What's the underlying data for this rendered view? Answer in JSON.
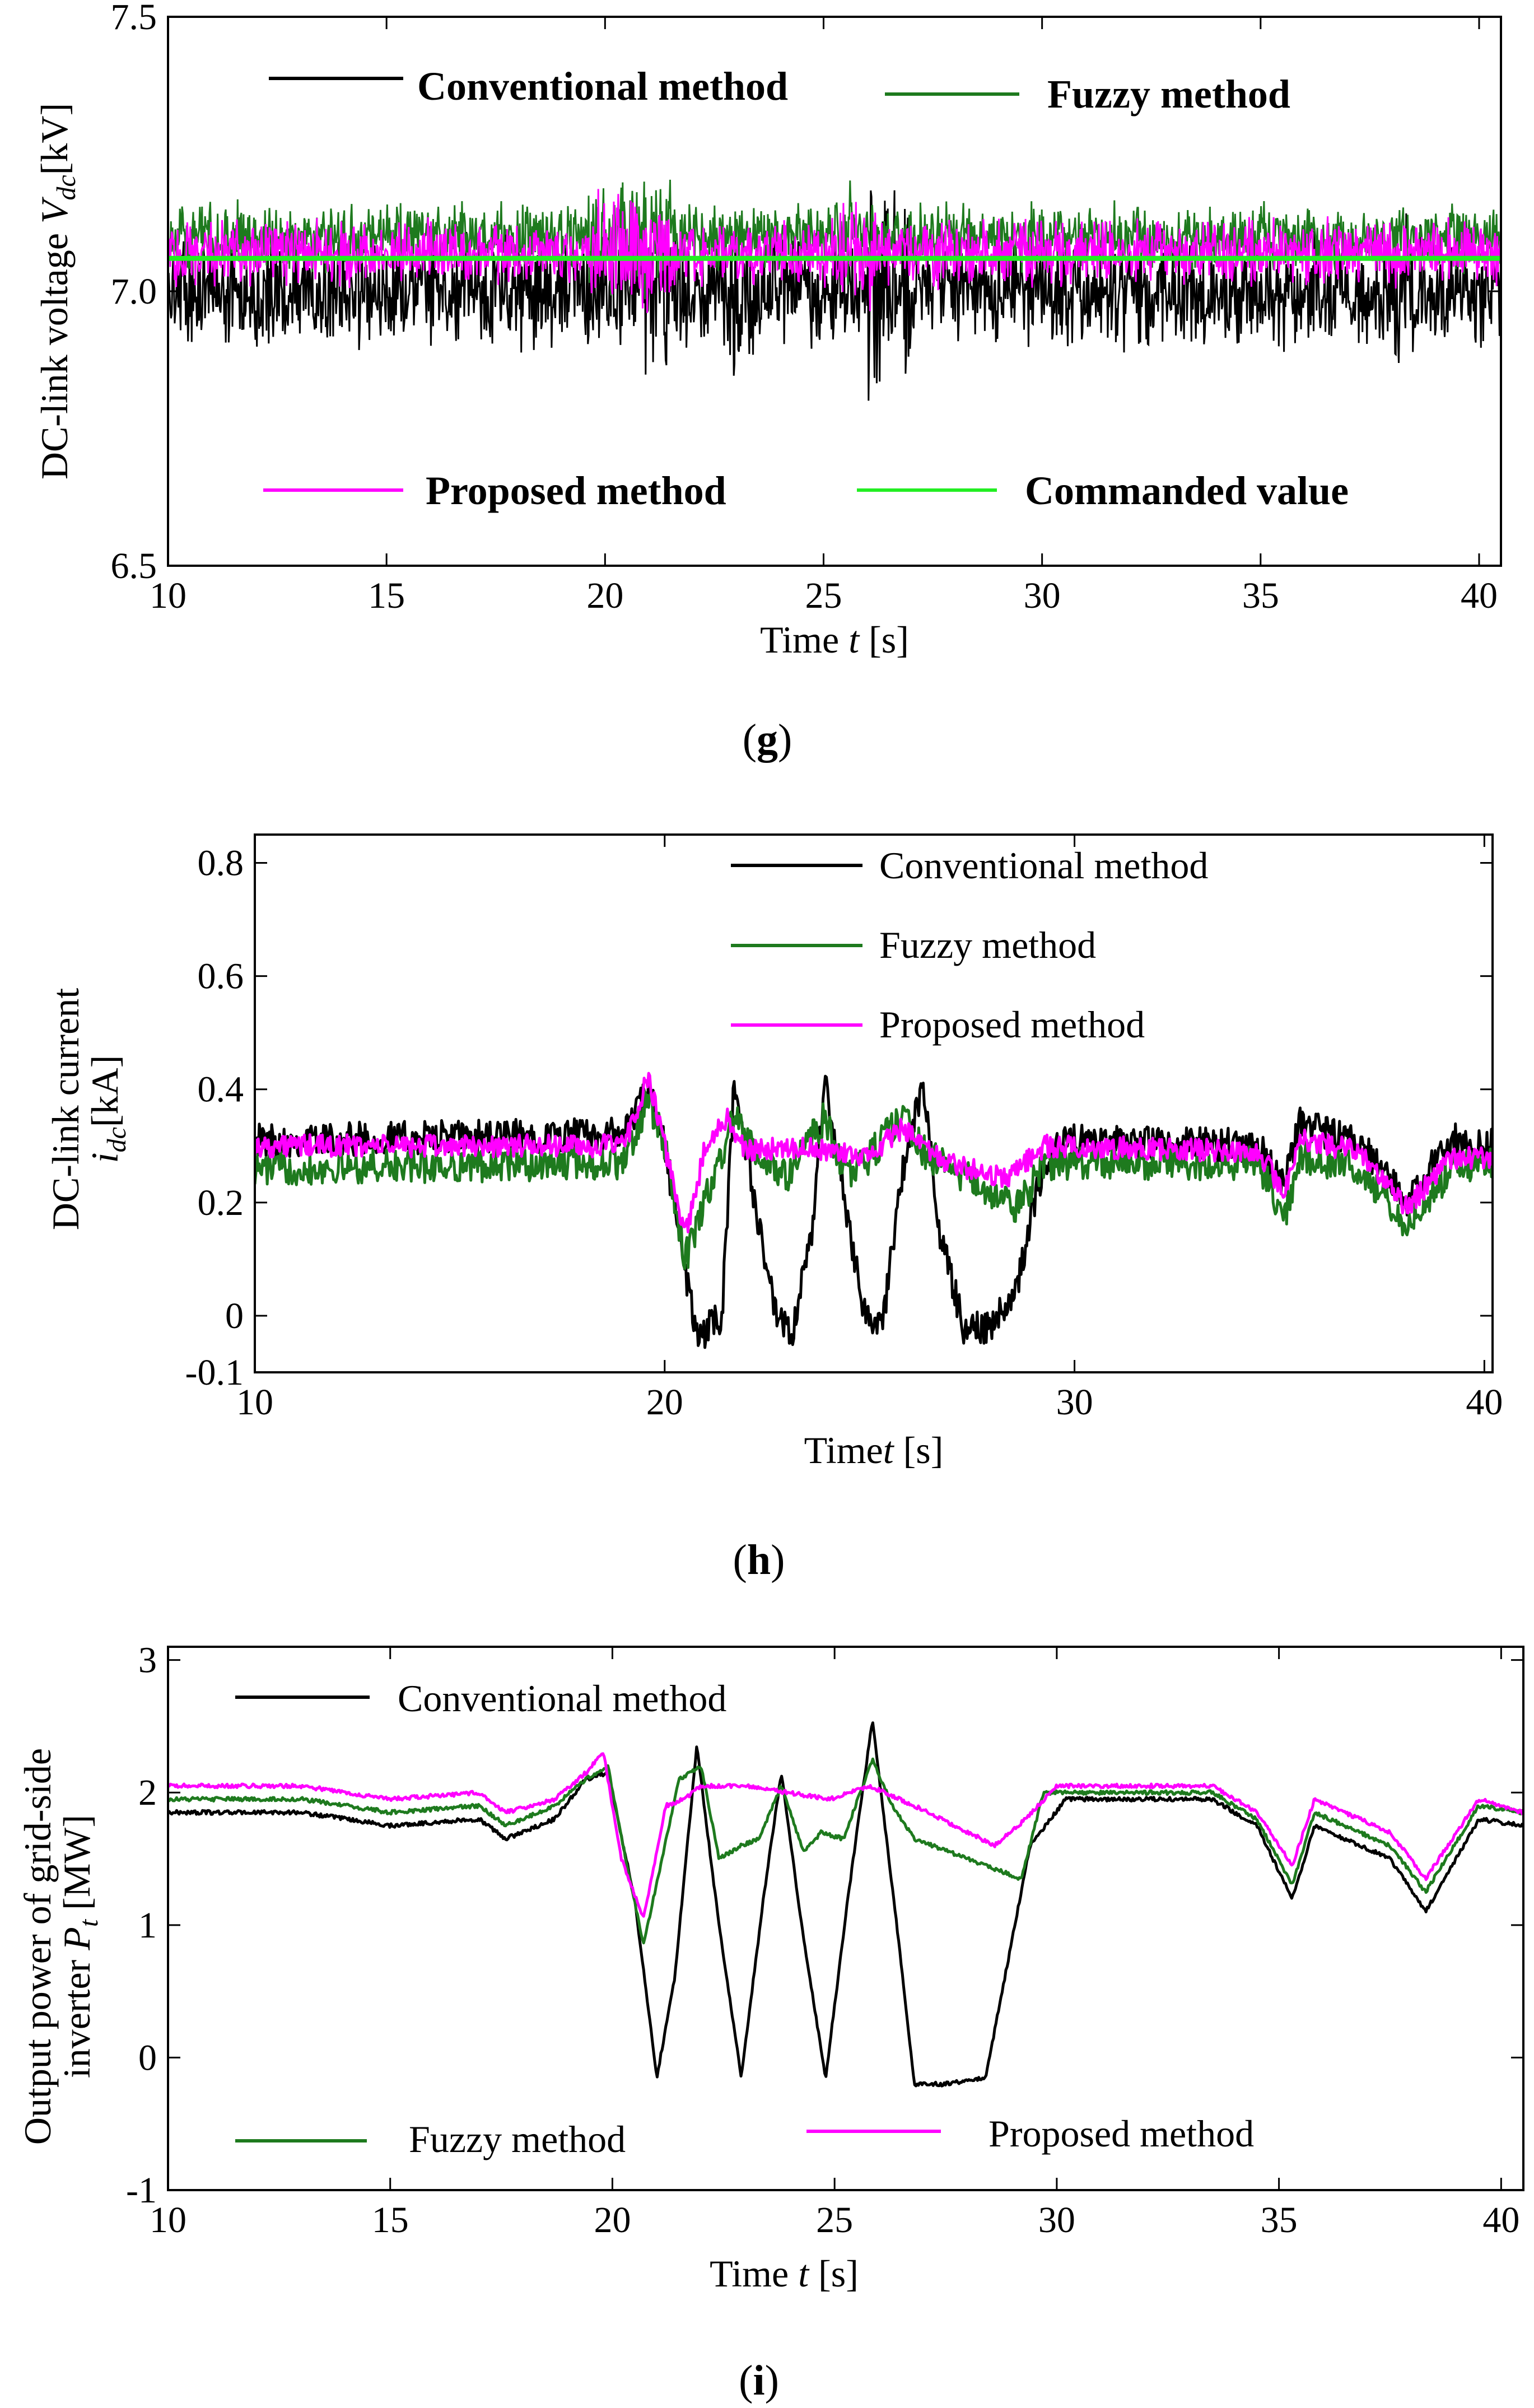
{
  "colors": {
    "conventional": "#000000",
    "fuzzy": "#1e7a1e",
    "proposed": "#ff00ff",
    "commanded": "#22ee22",
    "axis": "#000000"
  },
  "chart_data": [
    {
      "id": "g",
      "type": "line",
      "caption_letter": "g",
      "ylabel": "DC-link voltage",
      "ylabel_sym": "V",
      "ylabel_sub": "dc",
      "ylabel_unit": "[kV]",
      "xlabel": "Time",
      "xlabel_sym": "t",
      "xlabel_unit": "[s]",
      "xlim": [
        10,
        40.5
      ],
      "ylim": [
        6.5,
        7.5
      ],
      "xticks": [
        10,
        15,
        20,
        25,
        30,
        35,
        40
      ],
      "yticks": [
        "6.5",
        "7.0",
        "7.5"
      ],
      "legend_style": "bold",
      "series": [
        {
          "key": "conventional",
          "name": "Conventional method",
          "kind": "noisy",
          "mean": 7.0,
          "amp": 0.12,
          "events": [
            [
              20.6,
              21.6,
              0.1
            ],
            [
              22.8,
              23.4,
              0.06
            ],
            [
              26.0,
              27.0,
              0.1
            ],
            [
              38.0,
              38.7,
              0.04
            ]
          ]
        },
        {
          "key": "fuzzy",
          "name": "Fuzzy method",
          "kind": "noisy",
          "mean": 7.1,
          "amp": 0.07,
          "events": [
            [
              19.6,
              21.6,
              0.05
            ],
            [
              25.2,
              25.8,
              0.04
            ]
          ]
        },
        {
          "key": "proposed",
          "name": "Proposed method",
          "kind": "noisy",
          "mean": 7.07,
          "amp": 0.07,
          "events": [
            [
              19.6,
              21.6,
              0.06
            ],
            [
              25.2,
              26.2,
              0.04
            ]
          ]
        },
        {
          "key": "commanded",
          "name": "Commanded value",
          "kind": "const",
          "value": 7.06
        }
      ]
    },
    {
      "id": "h",
      "type": "line",
      "caption_letter": "h",
      "ylabel": "DC-link current",
      "ylabel_sym": "i",
      "ylabel_sub": "dc",
      "ylabel_unit": "[kA]",
      "xlabel": "Time",
      "xlabel_sym": "t",
      "xlabel_unit": "[s]",
      "xlim": [
        10,
        40.2
      ],
      "ylim": [
        -0.1,
        0.85
      ],
      "xticks": [
        10,
        20,
        30,
        40
      ],
      "yticks": [
        "-0.1",
        "0",
        "0.2",
        "0.4",
        "0.6",
        "0.8"
      ],
      "ytick_values": [
        -0.1,
        0,
        0.2,
        0.4,
        0.6,
        0.8
      ],
      "legend_style": "plain",
      "series": [
        {
          "key": "conventional",
          "name": "Conventional method",
          "kind": "points",
          "noise": 0.03,
          "x": [
            10,
            19,
            19.6,
            20.0,
            20.5,
            20.8,
            21.4,
            21.7,
            22.2,
            22.7,
            23.1,
            23.6,
            23.9,
            24.4,
            24.9,
            25.3,
            25.8,
            26.3,
            26.7,
            27.3,
            27.9,
            28.6,
            29.0,
            29.6,
            34.5,
            35.1,
            35.5,
            37.0,
            38.1,
            39.2,
            40.2
          ],
          "y": [
            0.31,
            0.32,
            0.4,
            0.3,
            0.08,
            -0.04,
            0.0,
            0.42,
            0.2,
            0.0,
            -0.04,
            0.15,
            0.42,
            0.2,
            0.0,
            -0.02,
            0.25,
            0.41,
            0.15,
            -0.02,
            -0.02,
            0.05,
            0.2,
            0.31,
            0.3,
            0.23,
            0.34,
            0.3,
            0.2,
            0.31,
            0.3
          ]
        },
        {
          "key": "fuzzy",
          "name": "Fuzzy method",
          "kind": "points",
          "noise": 0.03,
          "x": [
            10,
            19,
            19.6,
            20.0,
            20.5,
            21.7,
            22.3,
            23.0,
            23.9,
            24.4,
            24.9,
            25.8,
            26.3,
            28.6,
            29.3,
            34.5,
            35.1,
            35.5,
            37.0,
            38.1,
            39.2,
            40.2
          ],
          "y": [
            0.26,
            0.27,
            0.38,
            0.3,
            0.1,
            0.35,
            0.27,
            0.25,
            0.35,
            0.25,
            0.27,
            0.36,
            0.29,
            0.19,
            0.27,
            0.27,
            0.17,
            0.28,
            0.26,
            0.16,
            0.26,
            0.27
          ]
        },
        {
          "key": "proposed",
          "name": "Proposed method",
          "kind": "points",
          "noise": 0.02,
          "x": [
            10,
            19,
            19.6,
            20.0,
            20.5,
            21.0,
            21.5,
            22.0,
            23.0,
            24.9,
            25.8,
            26.8,
            27.5,
            28.3,
            29.3,
            34.5,
            35.1,
            35.5,
            37.0,
            38.1,
            39.2,
            40.2
          ],
          "y": [
            0.3,
            0.3,
            0.42,
            0.3,
            0.14,
            0.3,
            0.35,
            0.29,
            0.3,
            0.28,
            0.33,
            0.27,
            0.26,
            0.24,
            0.3,
            0.29,
            0.22,
            0.31,
            0.29,
            0.19,
            0.28,
            0.28
          ]
        }
      ]
    },
    {
      "id": "i",
      "type": "line",
      "caption_letter": "i",
      "ylabel": "Output power of grid-side",
      "ylabel2": "inverter",
      "ylabel_sym": "P",
      "ylabel_sub": "t",
      "ylabel_unit": "[MW]",
      "xlabel": "Time",
      "xlabel_sym": "t",
      "xlabel_unit": "[s]",
      "xlim": [
        10,
        40.5
      ],
      "ylim": [
        -1,
        3.1
      ],
      "xticks": [
        10,
        15,
        20,
        25,
        30,
        35,
        40
      ],
      "yticks": [
        "-1",
        "0",
        "1",
        "2",
        "3"
      ],
      "ytick_values": [
        -1,
        0,
        1,
        2,
        3
      ],
      "legend_style": "plain",
      "series": [
        {
          "key": "conventional",
          "name": "Conventional method",
          "kind": "points",
          "noise": 0.015,
          "x": [
            10,
            13,
            15,
            17,
            17.6,
            18.7,
            19.4,
            19.9,
            20.5,
            21.0,
            21.4,
            21.9,
            22.4,
            22.9,
            23.4,
            23.8,
            24.3,
            24.8,
            25.3,
            25.85,
            26.4,
            26.8,
            27.5,
            28.4,
            29.4,
            30.2,
            33.5,
            34.5,
            35.3,
            35.8,
            37.5,
            38.3,
            39.5,
            40.5
          ],
          "y": [
            1.85,
            1.85,
            1.75,
            1.8,
            1.65,
            1.8,
            2.1,
            2.15,
            1.2,
            -0.15,
            0.6,
            2.35,
            1.0,
            -0.15,
            1.2,
            2.15,
            0.9,
            -0.15,
            1.2,
            2.55,
            1.0,
            -0.2,
            -0.2,
            -0.15,
            1.6,
            1.95,
            1.95,
            1.75,
            1.2,
            1.75,
            1.5,
            1.1,
            1.8,
            1.75
          ]
        },
        {
          "key": "fuzzy",
          "name": "Fuzzy method",
          "kind": "points",
          "noise": 0.015,
          "x": [
            10,
            13,
            15,
            17,
            17.6,
            18.7,
            19.4,
            19.9,
            20.3,
            20.7,
            21.5,
            22.0,
            22.4,
            22.9,
            23.3,
            23.8,
            24.3,
            24.7,
            25.2,
            25.85,
            26.3,
            26.8,
            29.2,
            29.7,
            33.5,
            34.5,
            35.3,
            35.8,
            37.5,
            38.3,
            39.5,
            40.5
          ],
          "y": [
            1.95,
            1.95,
            1.85,
            1.9,
            1.75,
            1.9,
            2.1,
            2.2,
            1.5,
            0.85,
            2.1,
            2.2,
            1.5,
            1.6,
            1.65,
            2.05,
            1.55,
            1.7,
            1.65,
            2.25,
            1.9,
            1.65,
            1.35,
            2.0,
            2.0,
            1.8,
            1.3,
            1.85,
            1.6,
            1.25,
            1.9,
            1.85
          ]
        },
        {
          "key": "proposed",
          "name": "Proposed method",
          "kind": "points",
          "noise": 0.015,
          "x": [
            10,
            13,
            15,
            17,
            17.6,
            18.7,
            19.4,
            19.8,
            20.2,
            20.7,
            21.2,
            21.6,
            22.0,
            23.0,
            24.9,
            25.8,
            26.8,
            28.6,
            29.3,
            30.0,
            33.5,
            34.5,
            35.3,
            35.8,
            37.5,
            38.3,
            39.5,
            40.5
          ],
          "y": [
            2.05,
            2.05,
            1.95,
            2.0,
            1.85,
            1.95,
            2.15,
            2.3,
            1.5,
            1.05,
            1.9,
            1.95,
            2.05,
            2.05,
            1.95,
            2.05,
            1.9,
            1.6,
            1.8,
            2.05,
            2.05,
            1.85,
            1.45,
            1.95,
            1.7,
            1.35,
            1.95,
            1.85
          ]
        }
      ]
    }
  ]
}
